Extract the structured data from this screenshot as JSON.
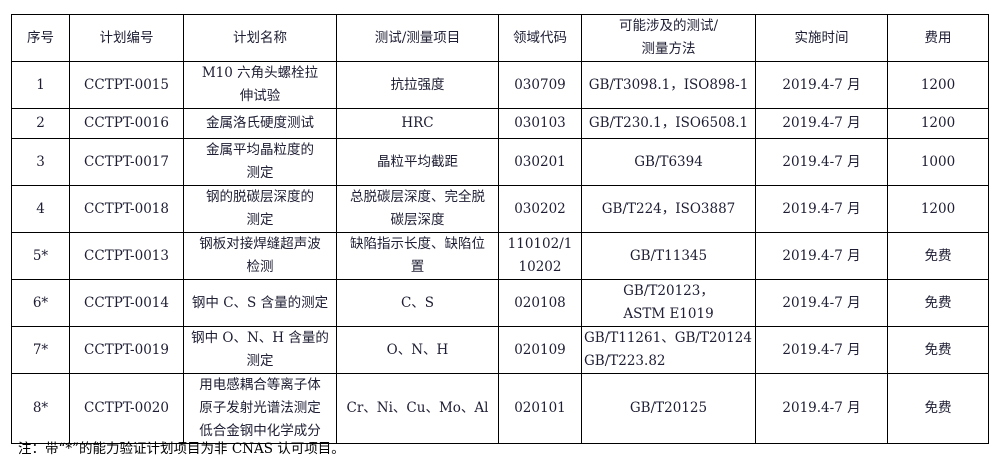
{
  "table": {
    "headers": [
      "序号",
      "计划编号",
      "计划名称",
      "测试/测量项目",
      "领域代码",
      "可能涉及的测试/\n测量方法",
      "实施时间",
      "费用"
    ],
    "rows": [
      [
        "1",
        "CCTPT-0015",
        "M10 六角头螺栓拉\n伸试验",
        "抗拉强度",
        "030709",
        "GB/T3098.1，ISO898-1",
        "2019.4-7 月",
        "1200"
      ],
      [
        "2",
        "CCTPT-0016",
        "金属洛氏硬度测试",
        "HRC",
        "030103",
        "GB/T230.1，ISO6508.1",
        "2019.4-7 月",
        "1200"
      ],
      [
        "3",
        "CCTPT-0017",
        "金属平均晶粒度的\n测定",
        "晶粒平均截距",
        "030201",
        "GB/T6394",
        "2019.4-7 月",
        "1000"
      ],
      [
        "4",
        "CCTPT-0018",
        "钢的脱碳层深度的\n测定",
        "总脱碳层深度、完全脱\n碳层深度",
        "030202",
        "GB/T224，ISO3887",
        "2019.4-7 月",
        "1200"
      ],
      [
        "5*",
        "CCTPT-0013",
        "钢板对接焊缝超声波\n检测",
        "缺陷指示长度、缺陷位\n置",
        "110102/1\n10202",
        "GB/T11345",
        "2019.4-7 月",
        "免费"
      ],
      [
        "6*",
        "CCTPT-0014",
        "钢中 C、S 含量的测定",
        "C、S",
        "020108",
        "GB/T20123，\nASTM E1019",
        "2019.4-7 月",
        "免费"
      ],
      [
        "7*",
        "CCTPT-0019",
        "钢中 O、N、H 含量的\n测定",
        "O、N、H",
        "020109",
        "GB/T11261、GB/T20124\nGB/T223.82",
        "2019.4-7 月",
        "免费"
      ],
      [
        "8*",
        "CCTPT-0020",
        "用电感耦合等离子体\n原子发射光谱法测定\n低合金钢中化学成分",
        "Cr、Ni、Cu、Mo、Al",
        "020101",
        "GB/T20125",
        "2019.4-7 月",
        "免费"
      ]
    ]
  },
  "note": "注：带“*”的能力验证计划项目为非 CNAS 认可项目。"
}
